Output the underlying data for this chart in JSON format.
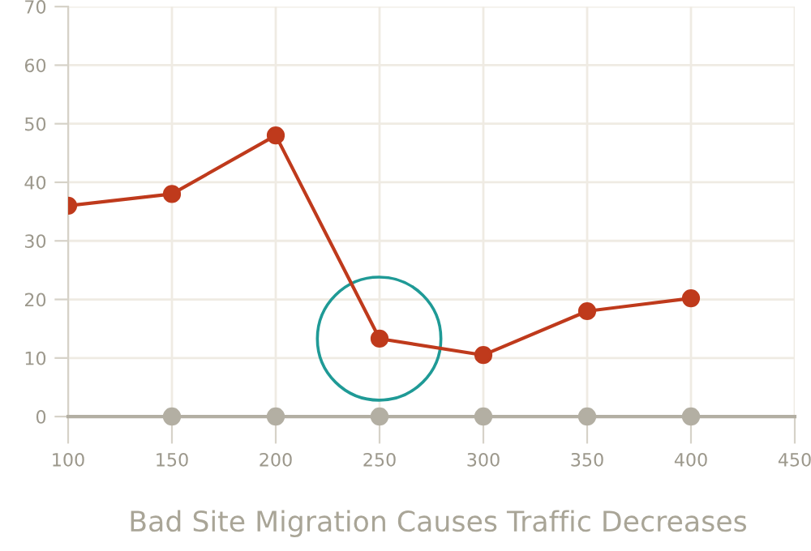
{
  "chart_data": {
    "type": "line",
    "title": "Bad Site Migration Causes Traffic Decreases",
    "series": [
      {
        "color": "#bf3a1c",
        "x": [
          100,
          150,
          200,
          250,
          300,
          350,
          400
        ],
        "values": [
          36,
          38,
          48,
          13.3,
          10.5,
          18,
          20.2
        ],
        "marker": "circle"
      },
      {
        "type": "scatter",
        "color": "#b3afa3",
        "x": [
          150,
          200,
          250,
          300,
          350,
          400
        ],
        "values": [
          0,
          0,
          0,
          0,
          0,
          0
        ],
        "marker": "circle"
      }
    ],
    "xlim": [
      100,
      450
    ],
    "xticks": [
      100,
      150,
      200,
      250,
      300,
      350,
      400,
      450
    ],
    "ylim": [
      0,
      70
    ],
    "yticks": [
      0,
      10,
      20,
      30,
      40,
      50,
      60,
      70
    ],
    "grid": true,
    "legend": false
  }
}
